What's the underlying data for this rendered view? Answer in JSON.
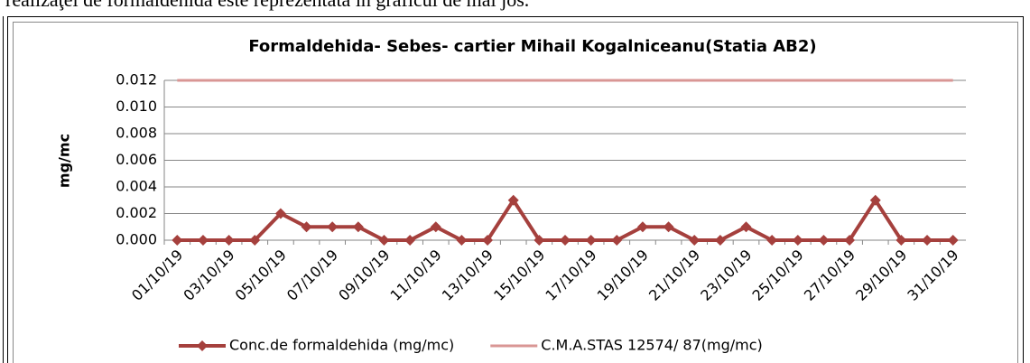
{
  "page_text": "realizaţei de formaldehida este reprezentata in graficul de mai jos.",
  "chart_data": {
    "type": "line",
    "title": "Formaldehida- Sebes-  cartier Mihail Kogalniceanu(Statia AB2)",
    "y_label": "mg/mc",
    "categories": [
      "01/10/19",
      null,
      "03/10/19",
      null,
      "05/10/19",
      null,
      "07/10/19",
      null,
      "09/10/19",
      null,
      "11/10/19",
      null,
      "13/10/19",
      null,
      "15/10/19",
      null,
      "17/10/19",
      null,
      "19/10/19",
      null,
      "21/10/19",
      null,
      "23/10/19",
      null,
      "25/10/19",
      null,
      "27/10/19",
      null,
      "29/10/19",
      null,
      "31/10/19"
    ],
    "series": [
      {
        "name": "Conc.de formaldehida (mg/mc)",
        "color": "#a5403d",
        "marker": "diamond",
        "values": [
          0,
          0,
          0,
          0,
          0.002,
          0.001,
          0.001,
          0.001,
          0,
          0,
          0.001,
          0,
          0,
          0.003,
          0,
          0,
          0,
          0,
          0.001,
          0.001,
          0,
          0,
          0.001,
          0,
          0,
          0,
          0,
          0.003,
          0,
          0,
          0
        ]
      },
      {
        "name": "C.M.A.STAS 12574/ 87(mg/mc)",
        "color": "#d99694",
        "values": [
          0.012,
          0.012,
          0.012,
          0.012,
          0.012,
          0.012,
          0.012,
          0.012,
          0.012,
          0.012,
          0.012,
          0.012,
          0.012,
          0.012,
          0.012,
          0.012,
          0.012,
          0.012,
          0.012,
          0.012,
          0.012,
          0.012,
          0.012,
          0.012,
          0.012,
          0.012,
          0.012,
          0.012,
          0.012,
          0.012,
          0.012
        ]
      }
    ],
    "ylim": [
      0,
      0.012
    ],
    "yticks": [
      {
        "value": 0,
        "label": "0.000"
      },
      {
        "value": 0.002,
        "label": "0.002"
      },
      {
        "value": 0.004,
        "label": "0.004"
      },
      {
        "value": 0.006,
        "label": "0.006"
      },
      {
        "value": 0.008,
        "label": "0.008"
      },
      {
        "value": 0.01,
        "label": "0.010"
      },
      {
        "value": 0.012,
        "label": "0.012"
      }
    ],
    "grid": true,
    "legend": "bottom"
  }
}
